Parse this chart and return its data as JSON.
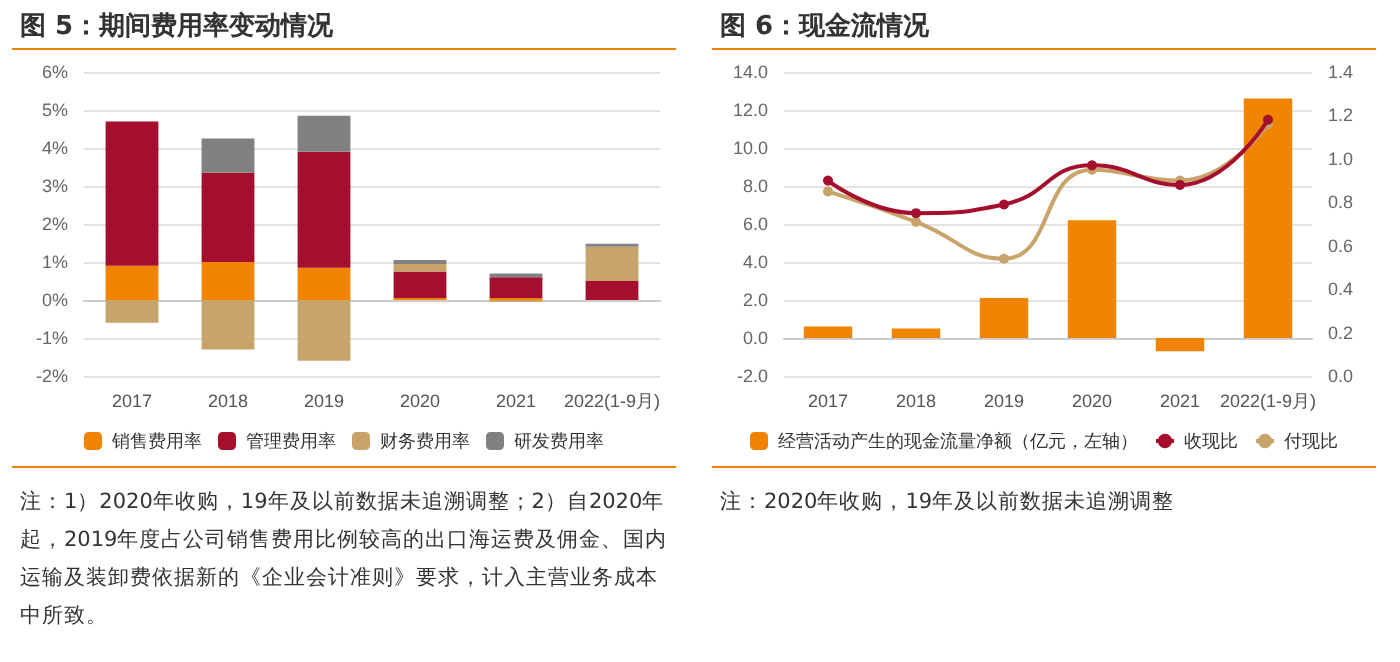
{
  "chart_data": [
    {
      "type": "bar",
      "title": "图 5：期间费用率变动情况",
      "stacked": true,
      "categories": [
        "2017",
        "2018",
        "2019",
        "2020",
        "2021",
        "2022(1-9月)"
      ],
      "series": [
        {
          "name": "销售费用率",
          "color": "#f08300",
          "values": [
            0.9,
            1.0,
            0.85,
            0.05,
            0.05,
            0
          ]
        },
        {
          "name": "管理费用率",
          "color": "#a50f2d",
          "values": [
            3.8,
            2.35,
            3.05,
            0.7,
            0.55,
            0.5
          ]
        },
        {
          "name": "财务费用率",
          "color": "#c8a46a",
          "values": [
            -0.6,
            -1.3,
            -1.6,
            0.2,
            -0.05,
            0.9
          ]
        },
        {
          "name": "研发费用率",
          "color": "#808080",
          "values": [
            0,
            0.9,
            0.95,
            0.1,
            0.1,
            0.08
          ]
        }
      ],
      "ylim": [
        -2,
        6
      ],
      "yticks": [
        {
          "value": -2,
          "label": "-2%"
        },
        {
          "value": -1,
          "label": "-1%"
        },
        {
          "value": 0,
          "label": "0%"
        },
        {
          "value": 1,
          "label": "1%"
        },
        {
          "value": 2,
          "label": "2%"
        },
        {
          "value": 3,
          "label": "3%"
        },
        {
          "value": 4,
          "label": "4%"
        },
        {
          "value": 5,
          "label": "5%"
        },
        {
          "value": 6,
          "label": "6%"
        }
      ],
      "grid": "y",
      "legend": "bottom",
      "annotations": [
        "注：1）2020年收购，19年及以前数据未追溯调整；2）自2020年起，2019年度占公司销售费用比例较高的出口海运费及佣金、国内运输及装卸费依据新的《企业会计准则》要求，计入主营业务成本中所致。"
      ]
    },
    {
      "type": "bar",
      "title": "图 6：现金流情况",
      "categories": [
        "2017",
        "2018",
        "2019",
        "2020",
        "2021",
        "2022(1-9月)"
      ],
      "series": [
        {
          "name": "经营活动产生的现金流量净额（亿元，左轴）",
          "color": "#f08300",
          "values": [
            0.6,
            0.5,
            2.1,
            6.2,
            -0.7,
            12.6
          ]
        },
        {
          "name": "收现比",
          "type": "line",
          "axis": "y2",
          "color": "#a50f2d",
          "values": [
            0.9,
            0.75,
            0.79,
            0.97,
            0.88,
            1.18
          ]
        },
        {
          "name": "付现比",
          "type": "line",
          "axis": "y2",
          "color": "#c8a46a",
          "values": [
            0.85,
            0.71,
            0.54,
            0.95,
            0.9,
            1.16
          ]
        }
      ],
      "ylim": [
        -2,
        14
      ],
      "yticks": [
        {
          "value": -2,
          "label": "-2.0"
        },
        {
          "value": 0,
          "label": "0.0"
        },
        {
          "value": 2,
          "label": "2.0"
        },
        {
          "value": 4,
          "label": "4.0"
        },
        {
          "value": 6,
          "label": "6.0"
        },
        {
          "value": 8,
          "label": "8.0"
        },
        {
          "value": 10,
          "label": "10.0"
        },
        {
          "value": 12,
          "label": "12.0"
        },
        {
          "value": 14,
          "label": "14.0"
        }
      ],
      "y2lim": [
        0,
        1.4
      ],
      "y2ticks": [
        {
          "value": 0,
          "label": "0.0"
        },
        0.2,
        0.4,
        0.6,
        0.8,
        {
          "value": 1,
          "label": "1.0"
        },
        1.2,
        1.4
      ],
      "marker": "circle",
      "grid": "y",
      "legend": "bottom",
      "annotations": [
        "注：2020年收购，19年及以前数据未追溯调整"
      ]
    }
  ]
}
